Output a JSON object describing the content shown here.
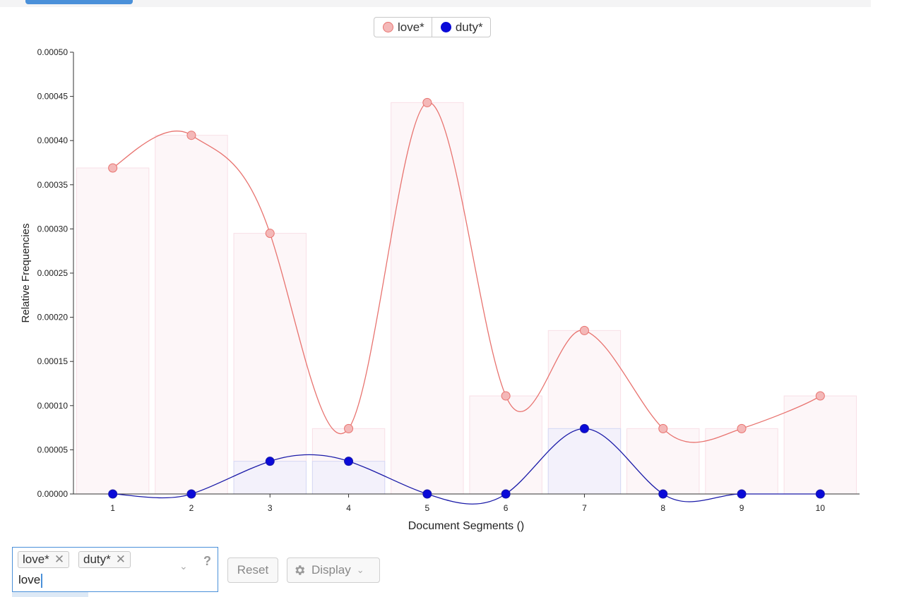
{
  "legend": [
    {
      "label": "love*",
      "color": "#f4b8b8"
    },
    {
      "label": "duty*",
      "color": "#0a0ad8"
    }
  ],
  "chart_data": {
    "type": "line",
    "x": [
      1,
      2,
      3,
      4,
      5,
      6,
      7,
      8,
      9,
      10
    ],
    "categories": [
      "1",
      "2",
      "3",
      "4",
      "5",
      "6",
      "7",
      "8",
      "9",
      "10"
    ],
    "series": [
      {
        "name": "love*",
        "line_color": "#e8736f",
        "point_color": "#f4b8b8",
        "values": [
          0.000369,
          0.000406,
          0.000295,
          7.4e-05,
          0.000443,
          0.000111,
          0.000185,
          7.4e-05,
          7.4e-05,
          0.000111
        ]
      },
      {
        "name": "duty*",
        "line_color": "#1a1aa8",
        "point_color": "#0a0ad8",
        "values": [
          0.0,
          0.0,
          3.7e-05,
          3.7e-05,
          0.0,
          0.0,
          7.4e-05,
          0.0,
          0.0,
          0.0
        ]
      }
    ],
    "xlabel": "Document Segments ()",
    "ylabel": "Relative Frequencies",
    "ylim": [
      0,
      0.0005
    ],
    "yticks": [
      "0.00000",
      "0.00005",
      "0.00010",
      "0.00015",
      "0.00020",
      "0.00025",
      "0.00030",
      "0.00035",
      "0.00040",
      "0.00045",
      "0.00050"
    ],
    "bars": true,
    "grid": false,
    "legend_position": "top-center"
  },
  "controls": {
    "tags": [
      "love*",
      "duty*"
    ],
    "tag_remove": "✕",
    "typed": "love",
    "help": "?",
    "chevron": "⌄",
    "reset": "Reset",
    "display": "Display"
  }
}
